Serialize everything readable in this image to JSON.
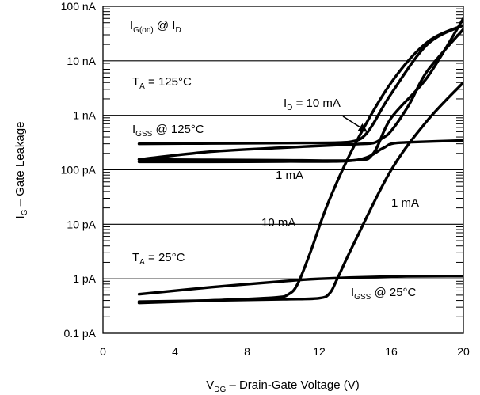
{
  "chart_data": {
    "type": "line",
    "title": "",
    "xlabel": {
      "main": "V",
      "sub": "DG",
      "rest": " – Drain-Gate Voltage (V)"
    },
    "ylabel": {
      "main": "I",
      "sub": "G",
      "rest": " – Gate Leakage"
    },
    "x_scale": "linear",
    "y_scale": "log",
    "xlim": [
      0,
      20
    ],
    "ylim": [
      0.1,
      100000
    ],
    "y_unit": "pA",
    "x_ticks": [
      "0",
      "4",
      "8",
      "12",
      "16",
      "20"
    ],
    "y_ticks": [
      {
        "value": 0.1,
        "label": "0.1 pA"
      },
      {
        "value": 1,
        "label": "1 pA"
      },
      {
        "value": 10,
        "label": "10 pA"
      },
      {
        "value": 100,
        "label": "100 pA"
      },
      {
        "value": 1000,
        "label": "1 nA"
      },
      {
        "value": 10000,
        "label": "10 nA"
      },
      {
        "value": 100000,
        "label": "100 nA"
      }
    ],
    "annotations": {
      "ig_on": {
        "main": "I",
        "sub": "G(on)",
        "rest": " @ I",
        "sub2": "D"
      },
      "ta_125": {
        "main": "T",
        "sub": "A",
        "rest": " = 125°C"
      },
      "igss_125": {
        "main": "I",
        "sub": "GSS",
        "rest": " @ 125°C"
      },
      "id_10ma": {
        "main": "I",
        "sub": "D",
        "rest": " = 10 mA"
      },
      "one_ma_upper": "1 mA",
      "one_ma_right": "1 mA",
      "ten_ma_lower": "10 mA",
      "ta_25": {
        "main": "T",
        "sub": "A",
        "rest": " = 25°C"
      },
      "igss_25": {
        "main": "I",
        "sub": "GSS",
        "rest": " @ 25°C"
      }
    },
    "series": [
      {
        "x": [
          2,
          6,
          10,
          13,
          14,
          14.5,
          15,
          16,
          18,
          20
        ],
        "y": [
          300,
          305,
          310,
          315,
          340,
          420,
          700,
          2500,
          20000,
          45000
        ]
      },
      {
        "x": [
          2,
          6,
          10,
          14,
          15,
          15.5,
          16,
          17,
          18,
          20
        ],
        "y": [
          155,
          215,
          255,
          295,
          310,
          380,
          520,
          1600,
          6500,
          38000
        ]
      },
      {
        "x": [
          2,
          6,
          10,
          14,
          15.5,
          16,
          17,
          20
        ],
        "y": [
          140,
          140,
          142,
          150,
          245,
          300,
          320,
          345
        ]
      },
      {
        "x": [
          2,
          6,
          10,
          14,
          15,
          16,
          18,
          20
        ],
        "y": [
          155,
          152,
          150,
          150,
          200,
          900,
          5000,
          60000
        ]
      },
      {
        "x": [
          2,
          6,
          9.5,
          10.3,
          10.8,
          11.5,
          12.5,
          14,
          16,
          18,
          20
        ],
        "y": [
          0.36,
          0.4,
          0.45,
          0.52,
          0.8,
          3,
          25,
          300,
          4000,
          22000,
          45000
        ]
      },
      {
        "x": [
          2,
          6,
          10,
          12,
          12.6,
          13,
          14,
          16,
          18,
          20
        ],
        "y": [
          0.38,
          0.4,
          0.42,
          0.44,
          0.55,
          1.0,
          5,
          100,
          800,
          4000
        ]
      },
      {
        "x": [
          2,
          6,
          10,
          12,
          16,
          20
        ],
        "y": [
          0.52,
          0.7,
          0.9,
          1.0,
          1.1,
          1.12
        ]
      }
    ]
  }
}
